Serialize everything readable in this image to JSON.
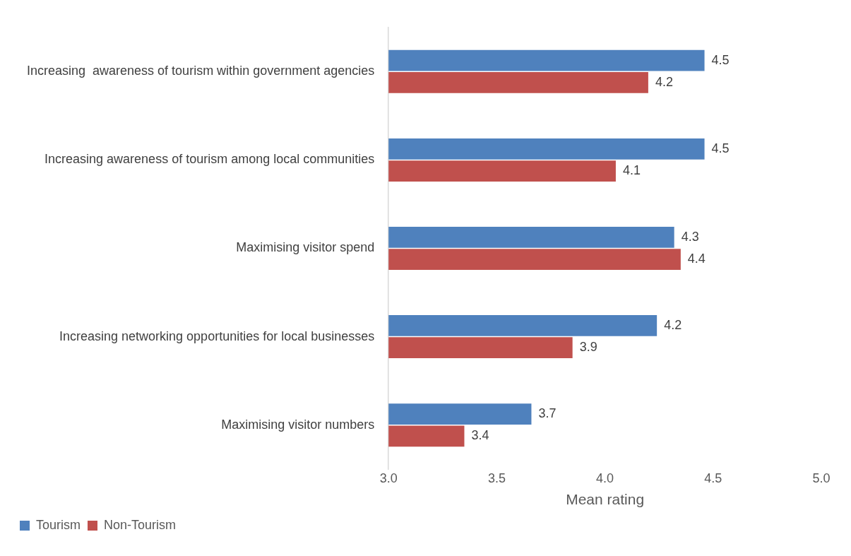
{
  "chart_data": {
    "type": "bar",
    "orientation": "horizontal",
    "xlabel": "Mean rating",
    "categories": [
      "Increasing  awareness of tourism within government agencies",
      "Increasing awareness of tourism among local communities",
      "Maximising visitor spend",
      "Increasing networking opportunities for local businesses",
      "Maximising visitor numbers"
    ],
    "series": [
      {
        "name": "Tourism",
        "color": "#4f81bd",
        "values": [
          4.46,
          4.46,
          4.32,
          4.24,
          3.66
        ],
        "value_labels": [
          "4.5",
          "4.5",
          "4.3",
          "4.2",
          "3.7"
        ]
      },
      {
        "name": "Non-Tourism",
        "color": "#c0504d",
        "values": [
          4.2,
          4.05,
          4.35,
          3.85,
          3.35
        ],
        "value_labels": [
          "4.2",
          "4.1",
          "4.4",
          "3.9",
          "3.4"
        ]
      }
    ],
    "xlim": [
      3,
      5
    ],
    "xticks": [
      {
        "value": 3,
        "label": "3.0"
      },
      {
        "value": 3.5,
        "label": "3.5"
      },
      {
        "value": 4,
        "label": "4.0"
      },
      {
        "value": 4.5,
        "label": "4.5"
      },
      {
        "value": 5,
        "label": "5.0"
      }
    ],
    "grid": false,
    "legend": "bottom"
  }
}
